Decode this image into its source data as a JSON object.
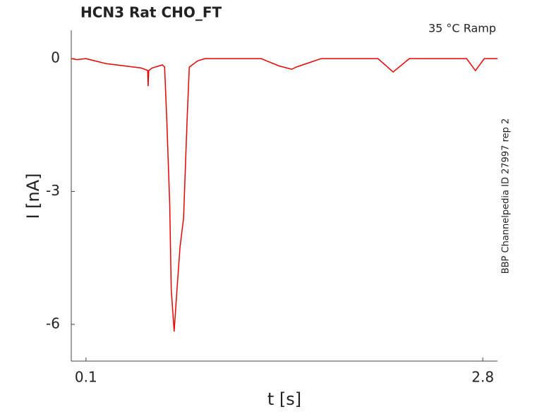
{
  "chart_data": {
    "type": "line",
    "title": "HCN3  Rat  CHO_FT",
    "subtitle": "35 °C  Ramp",
    "side_note": "BBP Channelpedia ID 27997 rep 2",
    "x_label": "t [s]",
    "y_label": "I [nA]",
    "x": [
      0.0,
      0.04,
      0.1,
      0.235,
      0.475,
      0.5,
      0.52,
      0.523,
      0.527,
      0.55,
      0.62,
      0.635,
      0.65,
      0.67,
      0.68,
      0.7,
      0.716,
      0.74,
      0.764,
      0.788,
      0.803,
      0.86,
      0.91,
      1.293,
      1.41,
      1.5,
      1.53,
      1.7,
      2.087,
      2.19,
      2.3,
      2.69,
      2.75,
      2.81,
      2.9
    ],
    "series": [
      {
        "name": "I",
        "color": "#ee0000",
        "values": [
          0,
          -0.02,
          0,
          -0.11,
          -0.21,
          -0.24,
          -0.27,
          -0.62,
          -0.27,
          -0.21,
          -0.14,
          -0.19,
          -1.39,
          -3.3,
          -5.2,
          -6.16,
          -5.37,
          -4.25,
          -3.61,
          -1.39,
          -0.19,
          -0.05,
          0,
          0,
          -0.16,
          -0.24,
          -0.19,
          0,
          0,
          -0.3,
          0,
          0,
          -0.27,
          0,
          0
        ]
      }
    ],
    "xlim": [
      0,
      2.9
    ],
    "ylim": [
      -6.83,
      0.64
    ],
    "xticks": [
      0.1,
      2.8
    ],
    "yticks": [
      0,
      -3,
      -6
    ]
  }
}
